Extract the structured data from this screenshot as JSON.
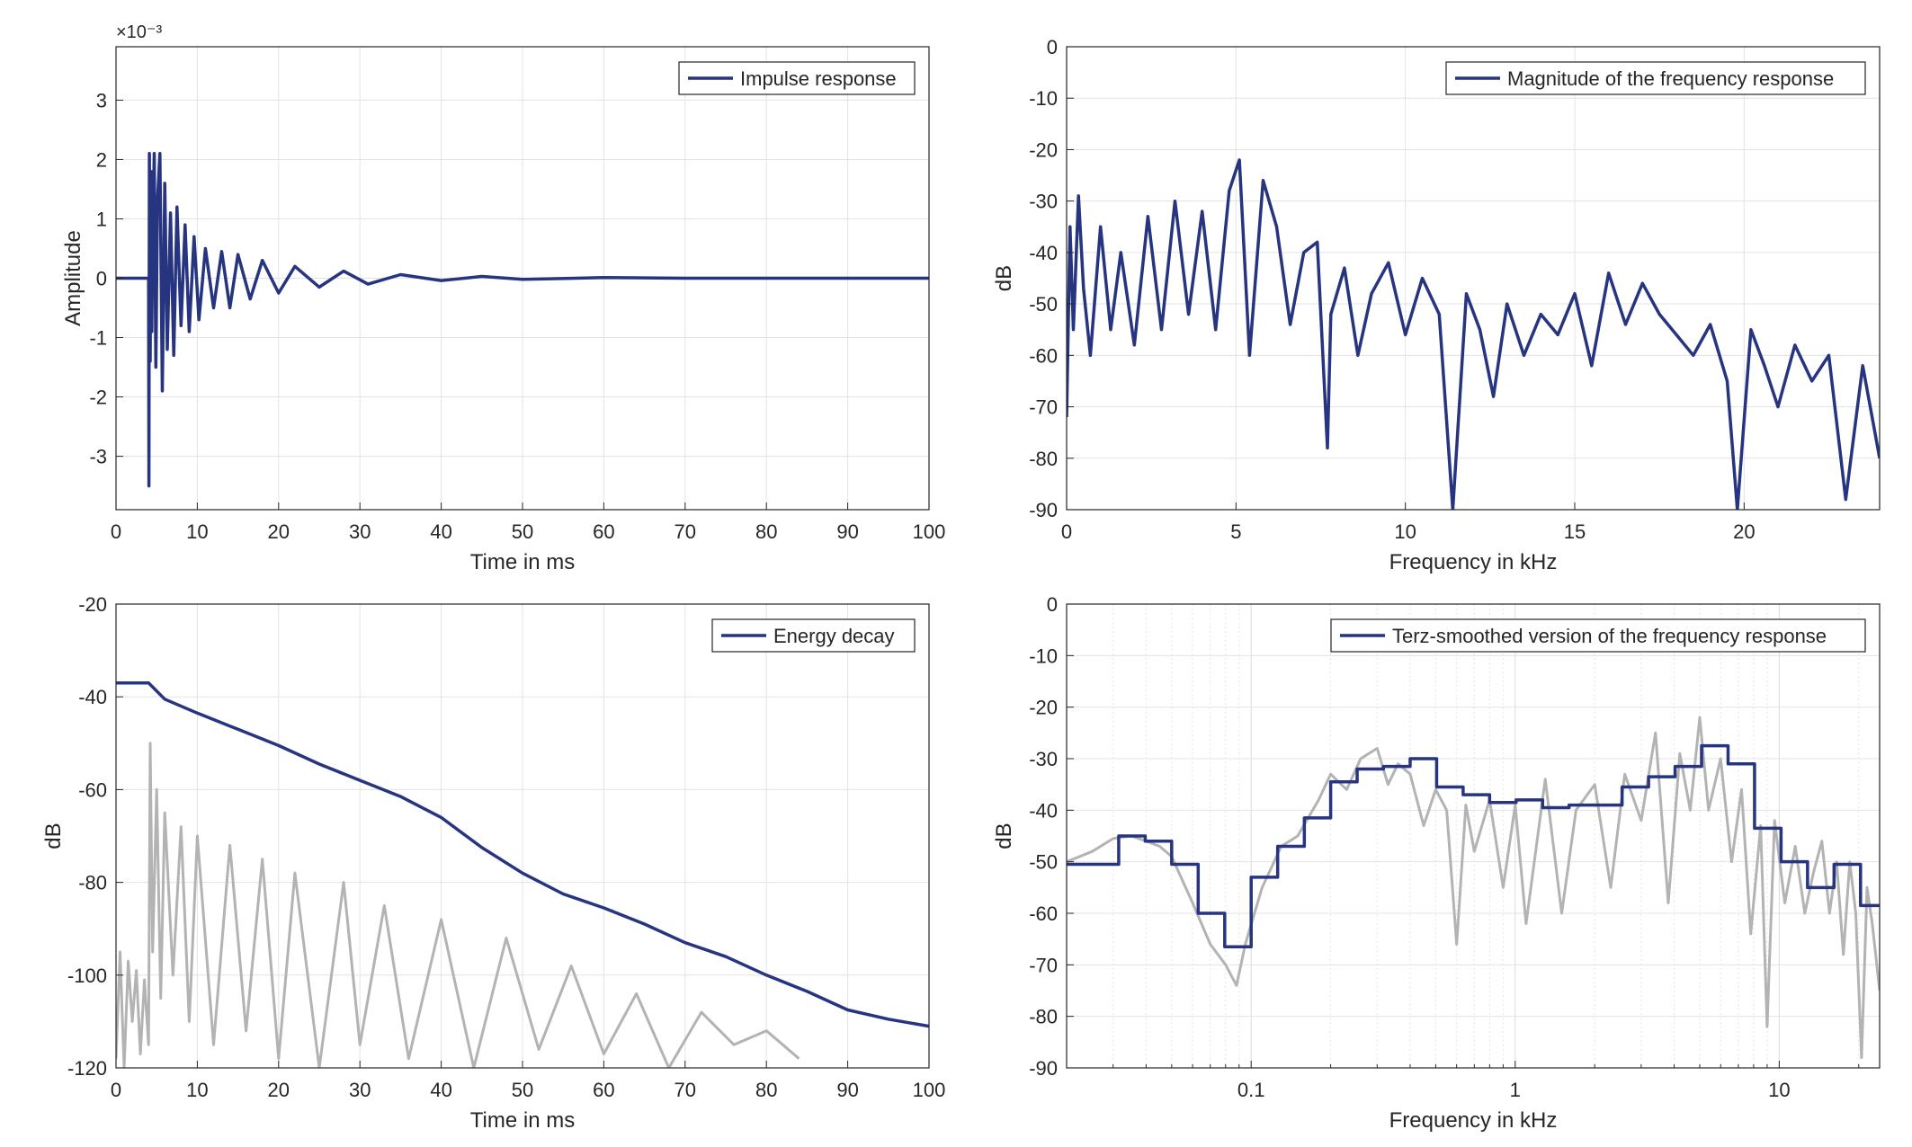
{
  "colors": {
    "series": "#27347f",
    "gray": "#b3b3b3",
    "axis": "#262626",
    "grid": "#e3e3e3"
  },
  "chart_data": [
    {
      "id": "impulse",
      "type": "line",
      "xlabel": "Time in ms",
      "ylabel": "Amplitude",
      "exponent_label": "×10⁻³",
      "xlim": [
        0,
        100
      ],
      "ylim": [
        -3.9,
        3.9
      ],
      "xticks": [
        0,
        10,
        20,
        30,
        40,
        50,
        60,
        70,
        80,
        90,
        100
      ],
      "xtick_labels": [
        "0",
        "10",
        "20",
        "30",
        "40",
        "50",
        "60",
        "70",
        "80",
        "90",
        "100"
      ],
      "yticks": [
        -3,
        -2,
        -1,
        0,
        1,
        2,
        3
      ],
      "ytick_labels": [
        "-3",
        "-2",
        "-1",
        "0",
        "1",
        "2",
        "3"
      ],
      "grid": true,
      "legend": {
        "position": "top-right",
        "entries": [
          "Impulse response"
        ]
      },
      "series": [
        {
          "name": "Impulse response",
          "color": "#27347f",
          "x": [
            0,
            2,
            4,
            4.05,
            4.1,
            4.2,
            4.3,
            4.4,
            4.5,
            4.7,
            4.9,
            5.1,
            5.4,
            5.7,
            6.0,
            6.3,
            6.7,
            7.1,
            7.5,
            8.0,
            8.5,
            9.0,
            9.6,
            10.2,
            11,
            12,
            13,
            14,
            15,
            16.5,
            18,
            20,
            22,
            25,
            28,
            31,
            35,
            40,
            45,
            50,
            60,
            70,
            80,
            90,
            100
          ],
          "y": [
            0,
            0,
            0,
            -3.5,
            2.1,
            -1.4,
            1.8,
            -0.9,
            0.6,
            2.1,
            -1.5,
            1.3,
            2.1,
            -1.9,
            1.6,
            -1.2,
            1.1,
            -1.3,
            1.2,
            -0.8,
            0.9,
            -0.9,
            0.7,
            -0.7,
            0.5,
            -0.5,
            0.45,
            -0.5,
            0.4,
            -0.35,
            0.3,
            -0.25,
            0.2,
            -0.15,
            0.12,
            -0.1,
            0.06,
            -0.04,
            0.03,
            -0.02,
            0.01,
            0,
            0,
            0,
            0
          ]
        }
      ]
    },
    {
      "id": "magnitude",
      "type": "line",
      "xlabel": "Frequency in kHz",
      "ylabel": "dB",
      "xlim": [
        0,
        24
      ],
      "ylim": [
        -90,
        0
      ],
      "xticks": [
        0,
        5,
        10,
        15,
        20
      ],
      "xtick_labels": [
        "0",
        "5",
        "10",
        "15",
        "20"
      ],
      "yticks": [
        0,
        -10,
        -20,
        -30,
        -40,
        -50,
        -60,
        -70,
        -80,
        -90
      ],
      "ytick_labels": [
        "0",
        "-10",
        "-20",
        "-30",
        "-40",
        "-50",
        "-60",
        "-70",
        "-80",
        "-90"
      ],
      "grid": true,
      "legend": {
        "position": "top-right",
        "entries": [
          "Magnitude of the frequency response"
        ]
      },
      "series": [
        {
          "name": "Magnitude of the frequency response",
          "color": "#27347f",
          "x": [
            0,
            0.1,
            0.2,
            0.35,
            0.5,
            0.7,
            1.0,
            1.3,
            1.6,
            2.0,
            2.4,
            2.8,
            3.2,
            3.6,
            4.0,
            4.4,
            4.8,
            5.1,
            5.4,
            5.8,
            6.2,
            6.6,
            7.0,
            7.4,
            7.7,
            7.8,
            8.2,
            8.6,
            9.0,
            9.5,
            10.0,
            10.5,
            11.0,
            11.4,
            11.8,
            12.2,
            12.6,
            13.0,
            13.5,
            14.0,
            14.5,
            15.0,
            15.5,
            16.0,
            16.5,
            17.0,
            17.5,
            18.0,
            18.5,
            19.0,
            19.5,
            19.8,
            20.2,
            20.6,
            21.0,
            21.5,
            22.0,
            22.5,
            23.0,
            23.5,
            24.0
          ],
          "y": [
            -72,
            -35,
            -55,
            -29,
            -47,
            -60,
            -35,
            -55,
            -40,
            -58,
            -33,
            -55,
            -30,
            -52,
            -32,
            -55,
            -28,
            -22,
            -60,
            -26,
            -35,
            -54,
            -40,
            -38,
            -78,
            -52,
            -43,
            -60,
            -48,
            -42,
            -56,
            -45,
            -52,
            -90,
            -48,
            -55,
            -68,
            -50,
            -60,
            -52,
            -56,
            -48,
            -62,
            -44,
            -54,
            -46,
            -52,
            -56,
            -60,
            -54,
            -65,
            -90,
            -55,
            -62,
            -70,
            -58,
            -65,
            -60,
            -88,
            -62,
            -80
          ]
        }
      ]
    },
    {
      "id": "energy",
      "type": "line",
      "xlabel": "Time in ms",
      "ylabel": "dB",
      "xlim": [
        0,
        100
      ],
      "ylim": [
        -120,
        -20
      ],
      "xticks": [
        0,
        10,
        20,
        30,
        40,
        50,
        60,
        70,
        80,
        90,
        100
      ],
      "xtick_labels": [
        "0",
        "10",
        "20",
        "30",
        "40",
        "50",
        "60",
        "70",
        "80",
        "90",
        "100"
      ],
      "yticks": [
        -20,
        -40,
        -60,
        -80,
        -100,
        -120
      ],
      "ytick_labels": [
        "-20",
        "-40",
        "-60",
        "-80",
        "-100",
        "-120"
      ],
      "grid": true,
      "legend": {
        "position": "top-right",
        "entries": [
          "Energy decay"
        ]
      },
      "series": [
        {
          "name": "Energy decay",
          "color": "#27347f",
          "x": [
            0,
            4,
            6,
            10,
            15,
            20,
            25,
            30,
            35,
            40,
            45,
            50,
            55,
            60,
            65,
            70,
            75,
            80,
            85,
            90,
            95,
            100
          ],
          "y": [
            -37,
            -37,
            -40.5,
            -43.5,
            -47,
            -50.5,
            -54.5,
            -58,
            -61.5,
            -66,
            -72.5,
            -78,
            -82.5,
            -85.5,
            -89,
            -93,
            -96,
            -100,
            -103.5,
            -107.5,
            -109.5,
            -111
          ]
        },
        {
          "color": "#b3b3b3",
          "x": [
            0,
            0.5,
            1,
            1.5,
            2,
            2.5,
            3,
            3.5,
            4,
            4.2,
            4.5,
            5,
            5.5,
            6,
            7,
            8,
            9,
            10,
            12,
            14,
            16,
            18,
            20,
            22,
            25,
            28,
            30,
            33,
            36,
            40,
            44,
            48,
            52,
            56,
            60,
            64,
            68,
            72,
            76,
            80,
            84
          ],
          "y": [
            -118,
            -95,
            -120,
            -97,
            -110,
            -99,
            -117,
            -101,
            -115,
            -50,
            -95,
            -60,
            -105,
            -65,
            -100,
            -68,
            -110,
            -70,
            -115,
            -72,
            -112,
            -75,
            -118,
            -78,
            -120,
            -80,
            -115,
            -85,
            -118,
            -88,
            -120,
            -92,
            -116,
            -98,
            -117,
            -104,
            -120,
            -108,
            -115,
            -112,
            -118
          ]
        }
      ]
    },
    {
      "id": "terz",
      "type": "line",
      "xlabel": "Frequency in kHz",
      "ylabel": "dB",
      "xscale": "log",
      "xlim": [
        0.02,
        24
      ],
      "ylim": [
        -90,
        0
      ],
      "xticks": [
        0.1,
        1,
        10
      ],
      "xtick_labels": [
        "0.1",
        "1",
        "10"
      ],
      "yticks": [
        0,
        -10,
        -20,
        -30,
        -40,
        -50,
        -60,
        -70,
        -80,
        -90
      ],
      "ytick_labels": [
        "0",
        "-10",
        "-20",
        "-30",
        "-40",
        "-50",
        "-60",
        "-70",
        "-80",
        "-90"
      ],
      "grid": true,
      "legend": {
        "position": "top-right",
        "entries": [
          "Terz-smoothed version of the frequency response"
        ]
      },
      "series": [
        {
          "name": "Terz-smoothed version of the frequency response",
          "color": "#27347f",
          "step": true,
          "x": [
            0.02,
            0.0315,
            0.0397,
            0.05,
            0.063,
            0.0794,
            0.1,
            0.126,
            0.159,
            0.2,
            0.252,
            0.317,
            0.4,
            0.504,
            0.635,
            0.8,
            1.008,
            1.27,
            1.6,
            2.016,
            2.54,
            3.2,
            4.032,
            5.08,
            6.4,
            8.063,
            10.16,
            12.8,
            16.13,
            20.32,
            24
          ],
          "y": [
            -50.5,
            -45,
            -46,
            -50.5,
            -60,
            -66.5,
            -53,
            -47,
            -41.5,
            -34.5,
            -32,
            -31.5,
            -30,
            -35.5,
            -37,
            -38.5,
            -38,
            -39.5,
            -39,
            -39,
            -35.5,
            -33.5,
            -31.5,
            -27.5,
            -31,
            -43.5,
            -50,
            -55,
            -50.5,
            -58.5,
            -58.5
          ]
        },
        {
          "color": "#b3b3b3",
          "x": [
            0.02,
            0.025,
            0.03,
            0.035,
            0.04,
            0.045,
            0.05,
            0.06,
            0.07,
            0.08,
            0.088,
            0.095,
            0.11,
            0.13,
            0.15,
            0.18,
            0.2,
            0.23,
            0.26,
            0.3,
            0.33,
            0.36,
            0.4,
            0.45,
            0.5,
            0.55,
            0.6,
            0.65,
            0.7,
            0.8,
            0.9,
            1.0,
            1.1,
            1.3,
            1.5,
            1.7,
            2.0,
            2.3,
            2.6,
            3.0,
            3.4,
            3.8,
            4.2,
            4.6,
            5.0,
            5.4,
            6.0,
            6.6,
            7.2,
            7.8,
            8.5,
            9.0,
            9.6,
            10.5,
            11.5,
            12.5,
            13.5,
            14.5,
            15.5,
            16.5,
            17.5,
            18.5,
            19.5,
            20.5,
            21.5,
            22.5,
            24
          ],
          "y": [
            -50,
            -48,
            -45.5,
            -45,
            -46,
            -47,
            -49,
            -58,
            -66,
            -70,
            -74,
            -66,
            -55,
            -47,
            -45,
            -38,
            -33,
            -36,
            -30,
            -28,
            -35,
            -31,
            -33,
            -43,
            -36,
            -40,
            -66,
            -39,
            -48,
            -38,
            -55,
            -39,
            -62,
            -34,
            -60,
            -40,
            -35,
            -55,
            -33,
            -42,
            -25,
            -58,
            -29,
            -40,
            -22,
            -40,
            -30,
            -50,
            -36,
            -64,
            -43,
            -82,
            -42,
            -58,
            -47,
            -60,
            -52,
            -46,
            -60,
            -50,
            -68,
            -50,
            -60,
            -88,
            -55,
            -62,
            -75
          ]
        }
      ]
    }
  ]
}
